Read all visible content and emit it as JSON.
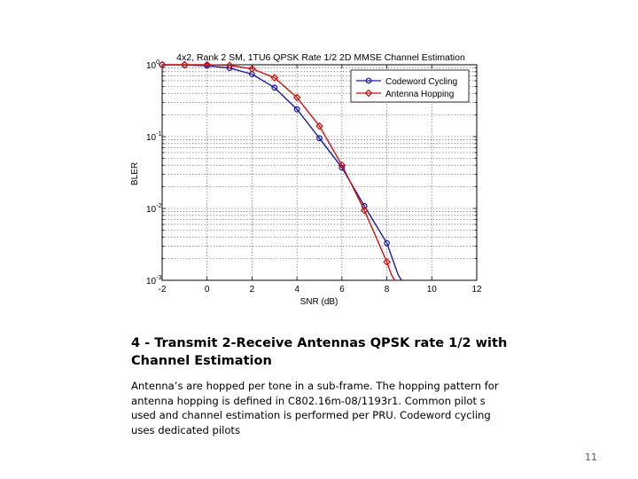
{
  "chart_data": {
    "type": "line",
    "title": "4x2, Rank 2 SM, 1TU6 QPSK Rate 1/2 2D MMSE Channel Estimation",
    "xlabel": "SNR (dB)",
    "ylabel": "BLER",
    "xlim": [
      -2,
      12
    ],
    "ylim": [
      0.001,
      1
    ],
    "y_scale": "log",
    "x_ticks": [
      "-2",
      "0",
      "2",
      "4",
      "6",
      "8",
      "10",
      "12"
    ],
    "y_ticks": [
      {
        "base": "10",
        "exp": "0"
      },
      {
        "base": "10",
        "exp": "-1"
      },
      {
        "base": "10",
        "exp": "-2"
      },
      {
        "base": "10",
        "exp": "-3"
      }
    ],
    "grid": true,
    "legend_position": "top-right",
    "series": [
      {
        "name": "Codeword Cycling",
        "color": "#1a1aa0",
        "marker": "circle",
        "points": [
          [
            -2,
            1.0
          ],
          [
            -1,
            0.99
          ],
          [
            0,
            0.97
          ],
          [
            1,
            0.9
          ],
          [
            2,
            0.74
          ],
          [
            3,
            0.48
          ],
          [
            4,
            0.24
          ],
          [
            5,
            0.095
          ],
          [
            6,
            0.037
          ],
          [
            7,
            0.0108
          ],
          [
            8,
            0.0033
          ]
        ],
        "tail": [
          [
            8.5,
            0.0012
          ],
          [
            8.65,
            0.001
          ]
        ]
      },
      {
        "name": "Antenna Hopping",
        "color": "#cc1111",
        "marker": "diamond",
        "points": [
          [
            -2,
            1.0
          ],
          [
            -1,
            1.0
          ],
          [
            0,
            1.0
          ],
          [
            1,
            0.98
          ],
          [
            2,
            0.88
          ],
          [
            3,
            0.66
          ],
          [
            4,
            0.35
          ],
          [
            5,
            0.14
          ],
          [
            6,
            0.04
          ],
          [
            7,
            0.0094
          ],
          [
            8,
            0.0018
          ]
        ],
        "tail": [
          [
            8.2,
            0.0012
          ],
          [
            8.35,
            0.001
          ]
        ]
      }
    ]
  },
  "caption": {
    "title": "4 - Transmit 2-Receive Antennas QPSK rate 1/2 with Channel Estimation",
    "body": "Antenna’s are hopped per tone in a sub-frame. The hopping pattern for antenna hopping is defined in C802.16m-08/1193r1.  Common pilot s used and channel estimation is performed per PRU.  Codeword cycling uses dedicated pilots"
  },
  "page_number": "11"
}
